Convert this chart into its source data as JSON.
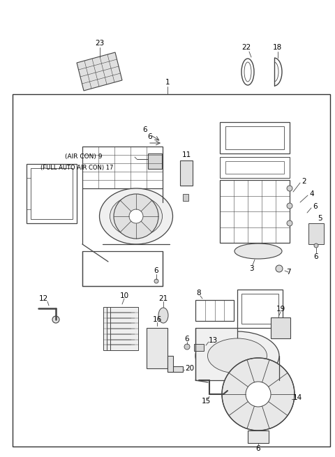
{
  "bg": "#ffffff",
  "lc": "#444444",
  "tc": "#000000",
  "fig_w": 4.8,
  "fig_h": 6.55,
  "dpi": 100
}
